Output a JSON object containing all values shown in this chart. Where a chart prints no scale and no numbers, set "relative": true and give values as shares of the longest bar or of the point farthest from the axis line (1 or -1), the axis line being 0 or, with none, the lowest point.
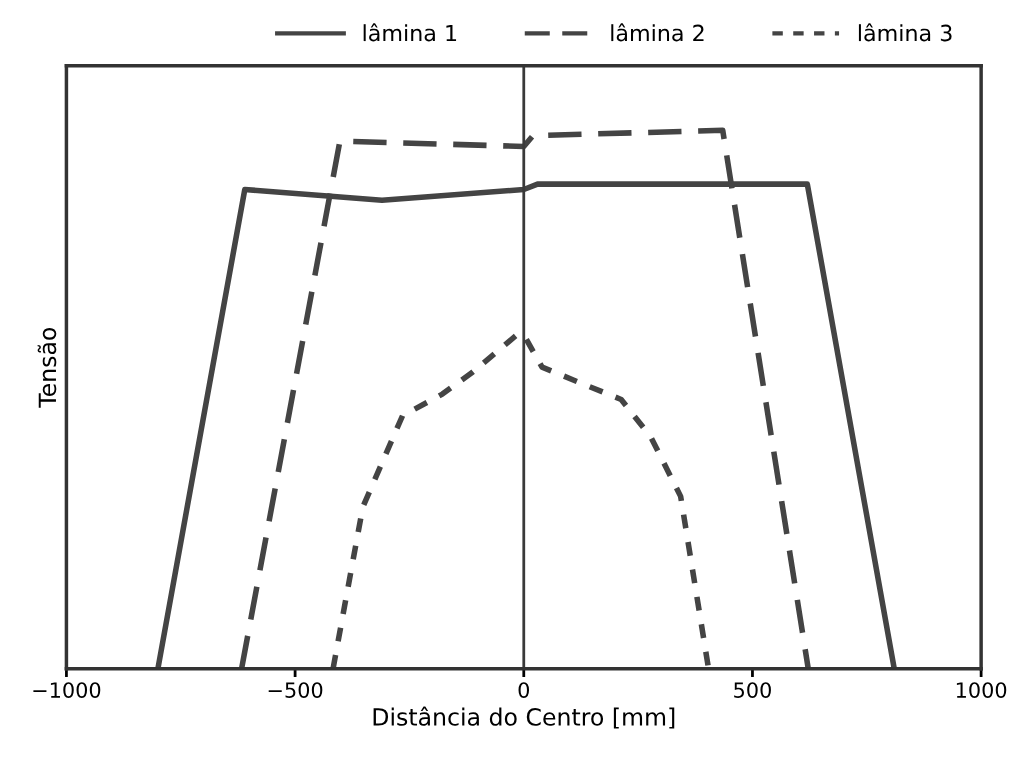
{
  "chart_data": {
    "type": "line",
    "xlabel": "Distância do Centro [mm]",
    "ylabel": "Tensão",
    "relative": true,
    "xlim": [
      -1000,
      1000
    ],
    "xticks": [
      {
        "value": -1000,
        "label": "−1000"
      },
      {
        "value": -500,
        "label": "−500"
      },
      0,
      500,
      1000
    ],
    "legend": "top",
    "grid": false,
    "marker": "none",
    "ref_lines": [
      {
        "axis": "x",
        "value": 0,
        "label": null,
        "color": "#3a3a3a",
        "line_style": "solid"
      }
    ],
    "series": [
      {
        "name": "lâmina 1",
        "color": "#444444",
        "line_style": "solid",
        "x": [
          -800,
          -610,
          -310,
          0,
          30,
          300,
          620,
          810
        ],
        "values": [
          0,
          0.89,
          0.87,
          0.89,
          0.9,
          0.9,
          0.9,
          0
        ]
      },
      {
        "name": "lâmina 2",
        "color": "#444444",
        "line_style": "dashed",
        "x": [
          -617,
          -402,
          0,
          20,
          435,
          622
        ],
        "values": [
          0,
          0.98,
          0.97,
          0.99,
          1.0,
          0
        ]
      },
      {
        "name": "lâmina 3",
        "color": "#444444",
        "line_style": "dotted",
        "x": [
          -417,
          -352,
          -265,
          -178,
          -113,
          -15,
          0,
          40,
          126,
          213,
          278,
          343,
          404
        ],
        "values": [
          0,
          0.3,
          0.47,
          0.51,
          0.55,
          0.62,
          0.62,
          0.56,
          0.53,
          0.5,
          0.43,
          0.32,
          0
        ]
      }
    ]
  }
}
